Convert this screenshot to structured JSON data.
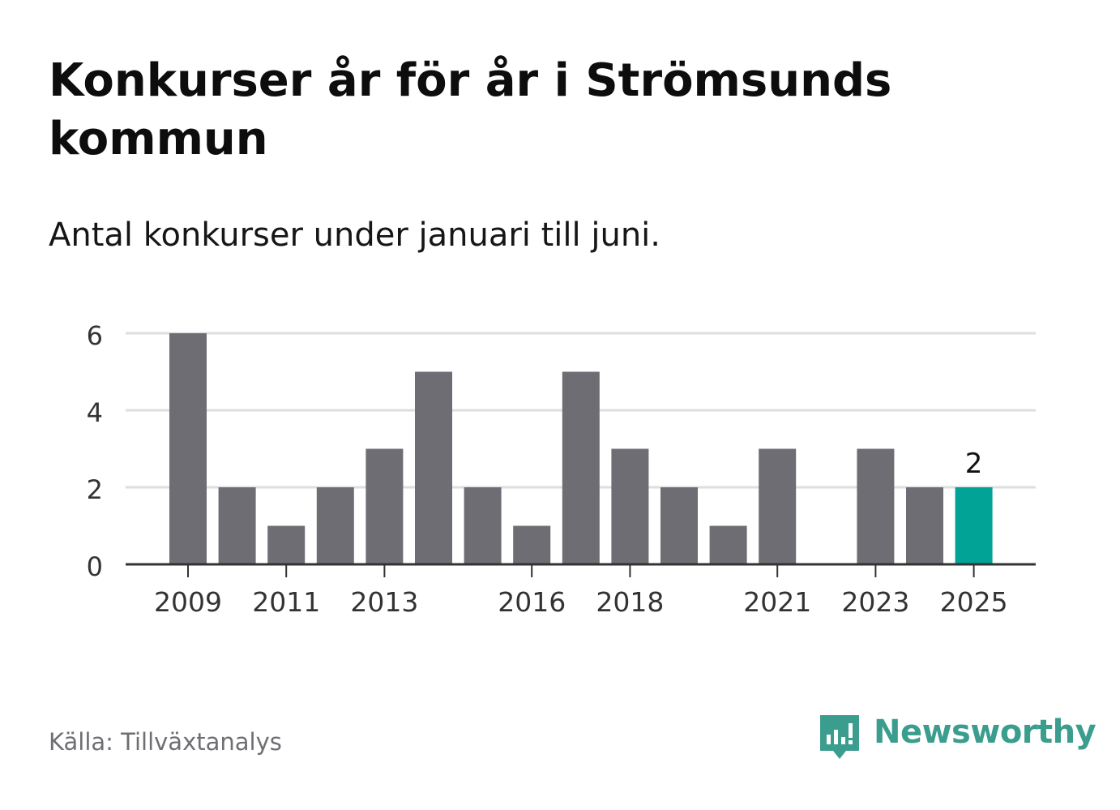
{
  "header": {
    "title": "Konkurser år för år i Strömsunds kommun",
    "subtitle": "Antal konkurser under januari till juni."
  },
  "footer": {
    "source": "Källa: Tillväxtanalys",
    "brand": "Newsworthy",
    "brand_icon": "newsworthy-logo-icon"
  },
  "colors": {
    "bar": "#6e6d73",
    "highlight": "#00a396",
    "grid": "#dedede",
    "axis": "#333333",
    "brand": "#3b9d8e"
  },
  "chart_data": {
    "type": "bar",
    "categories": [
      "2009",
      "2010",
      "2011",
      "2012",
      "2013",
      "2014",
      "2015",
      "2016",
      "2017",
      "2018",
      "2019",
      "2020",
      "2021",
      "2022",
      "2023",
      "2024",
      "2025"
    ],
    "values": [
      6,
      2,
      1,
      2,
      3,
      5,
      2,
      1,
      5,
      3,
      2,
      1,
      3,
      0,
      3,
      2,
      2
    ],
    "x_tick_labels": [
      "2009",
      "2011",
      "2013",
      "2016",
      "2018",
      "2021",
      "2023",
      "2025"
    ],
    "y_ticks": [
      0,
      2,
      4,
      6
    ],
    "ylim": [
      0,
      6
    ],
    "highlight_category": "2025",
    "highlight_label": "2",
    "grid": true,
    "legend": "none"
  }
}
